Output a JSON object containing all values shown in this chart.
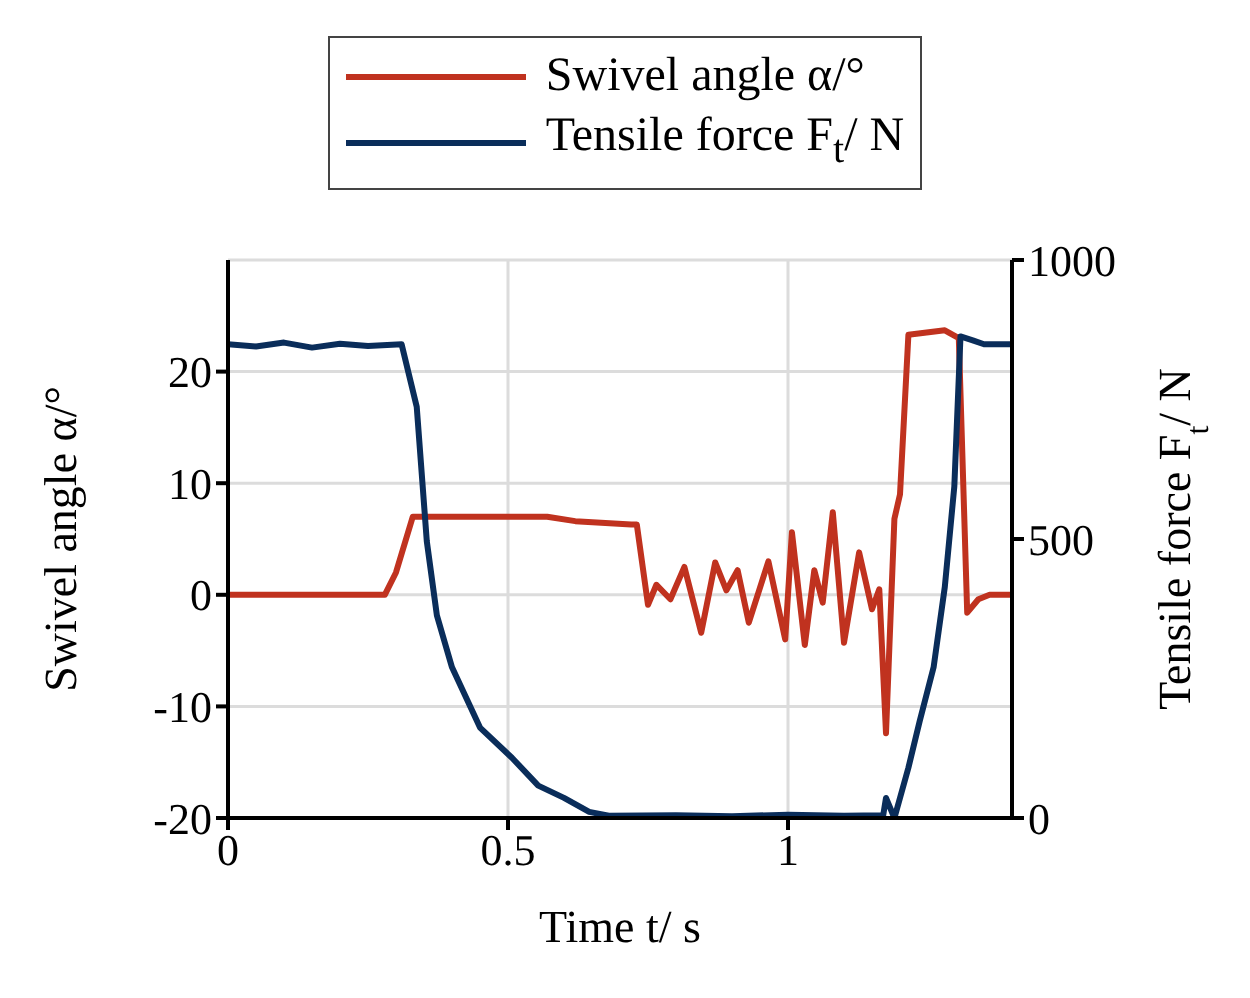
{
  "chart_data": {
    "type": "line",
    "xlabel": "Time t/ s",
    "ylabel": "Swivel angle α/°",
    "y2label": "Tensile force F$_{t}$/ N",
    "xlim": [
      0,
      1.4
    ],
    "xticks": [
      0,
      0.5,
      1
    ],
    "ylim": [
      -20,
      30
    ],
    "yticks": [
      -20,
      -10,
      0,
      10,
      20
    ],
    "y2lim": [
      0,
      1000
    ],
    "y2ticks": [
      0,
      500,
      1000
    ],
    "grid": true,
    "legend": "top",
    "marker": "none",
    "line_style": "solid",
    "series": [
      {
        "name": "Swivel angle α/°",
        "color": "#c0321f",
        "x": [
          0,
          0.28,
          0.3,
          0.33,
          0.57,
          0.62,
          0.72,
          0.73,
          0.75,
          0.765,
          0.79,
          0.815,
          0.845,
          0.87,
          0.89,
          0.91,
          0.93,
          0.965,
          0.995,
          1.007,
          1.03,
          1.047,
          1.062,
          1.08,
          1.1,
          1.127,
          1.15,
          1.163,
          1.175,
          1.19,
          1.2,
          1.215,
          1.28,
          1.305,
          1.32,
          1.34,
          1.36,
          1.4
        ],
        "values": [
          0,
          0,
          2,
          7,
          7,
          6.6,
          6.3,
          6.3,
          -0.9,
          0.9,
          -0.4,
          2.5,
          -3.4,
          2.9,
          0.4,
          2.2,
          -2.5,
          3,
          -4,
          5.6,
          -4.5,
          2.2,
          -0.7,
          7.4,
          -4.3,
          3.8,
          -1.3,
          0.5,
          -12.4,
          6.8,
          9,
          23.3,
          23.7,
          23,
          -1.6,
          -0.4,
          0,
          0
        ]
      },
      {
        "name": "Tensile force F$_{t}$/ N",
        "color": "#0a2d5a",
        "axis": "y2",
        "x": [
          0,
          0.05,
          0.1,
          0.15,
          0.2,
          0.25,
          0.31,
          0.337,
          0.355,
          0.373,
          0.4,
          0.45,
          0.507,
          0.554,
          0.6,
          0.645,
          0.68,
          0.8,
          0.9,
          1,
          1.1,
          1.17,
          1.175,
          1.19,
          1.215,
          1.235,
          1.26,
          1.28,
          1.297,
          1.308,
          1.33,
          1.35,
          1.4
        ],
        "values": [
          849,
          845,
          852,
          843,
          850,
          846,
          849,
          737,
          496,
          363,
          270,
          162,
          108,
          58,
          36,
          11,
          4,
          5,
          3,
          6,
          4,
          5,
          36,
          0,
          90,
          173,
          270,
          414,
          594,
          863,
          856,
          849,
          849
        ]
      }
    ]
  }
}
